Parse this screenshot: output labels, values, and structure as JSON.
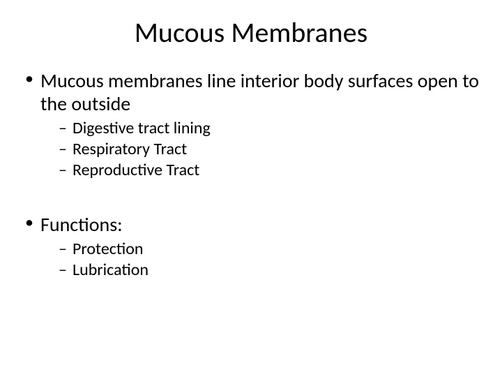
{
  "title": "Mucous Membranes",
  "bullets": [
    {
      "text": "Mucous membranes line interior body surfaces open to the outside",
      "sub": [
        "Digestive tract lining",
        "Respiratory Tract",
        "Reproductive Tract"
      ]
    },
    {
      "text": "Functions:",
      "sub": [
        "Protection",
        "Lubrication"
      ]
    }
  ],
  "colors": {
    "background": "#ffffff",
    "text": "#000000"
  },
  "typography": {
    "title_fontsize": 40,
    "l1_fontsize": 28,
    "l2_fontsize": 24,
    "font_family": "Calibri"
  }
}
